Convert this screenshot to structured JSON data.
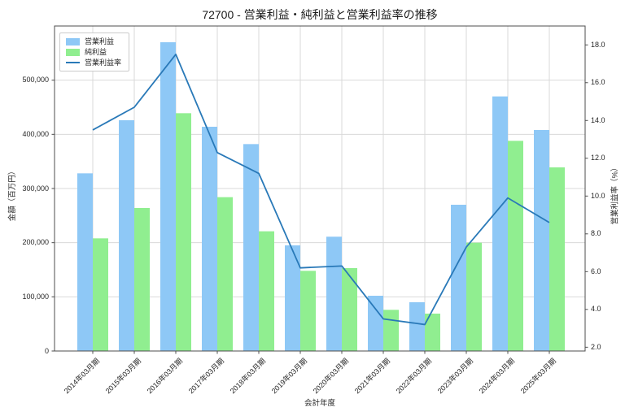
{
  "chart_data": {
    "type": "bar+line combo",
    "title": "72700 - 営業利益・純利益と営業利益率の推移",
    "xlabel": "会計年度",
    "ylabel_left": "金額（百万円）",
    "ylabel_right": "営業利益率（%）",
    "categories": [
      "2014年03月期",
      "2015年03月期",
      "2016年03月期",
      "2017年03月期",
      "2018年03月期",
      "2019年03月期",
      "2020年03月期",
      "2021年03月期",
      "2022年03月期",
      "2023年03月期",
      "2024年03月期",
      "2025年03月期"
    ],
    "series": [
      {
        "name": "営業利益",
        "type": "bar",
        "axis": "left",
        "color": "#8ec8f6",
        "values": [
          328000,
          426000,
          570000,
          414000,
          382000,
          195000,
          211000,
          102000,
          90000,
          270000,
          470000,
          408000
        ]
      },
      {
        "name": "純利益",
        "type": "bar",
        "axis": "left",
        "color": "#90ee90",
        "values": [
          208000,
          264000,
          439000,
          284000,
          221000,
          148000,
          153000,
          76000,
          69000,
          200000,
          388000,
          339000
        ]
      },
      {
        "name": "営業利益率",
        "type": "line",
        "axis": "right",
        "color": "#2979b8",
        "values": [
          13.5,
          14.7,
          17.5,
          12.3,
          11.2,
          6.2,
          6.3,
          3.5,
          3.2,
          7.3,
          9.9,
          8.6
        ]
      }
    ],
    "ylim_left": [
      0,
      600000
    ],
    "ylim_right": [
      1.8,
      19.0
    ],
    "yticks_left": {
      "values": [
        0,
        100000,
        200000,
        300000,
        400000,
        500000
      ],
      "labels": [
        "0",
        "100,000",
        "200,000",
        "300,000",
        "400,000",
        "500,000"
      ]
    },
    "yticks_right": {
      "values": [
        2,
        4,
        6,
        8,
        10,
        12,
        14,
        16,
        18
      ],
      "labels": [
        "2.0",
        "4.0",
        "6.0",
        "8.0",
        "10.0",
        "12.0",
        "14.0",
        "16.0",
        "18.0"
      ]
    },
    "grid": true,
    "legend_position": "upper left",
    "colors": {
      "grid": "#d9d9d9",
      "spine": "#4d4d4d",
      "text": "#262626",
      "background": "#ffffff"
    }
  }
}
